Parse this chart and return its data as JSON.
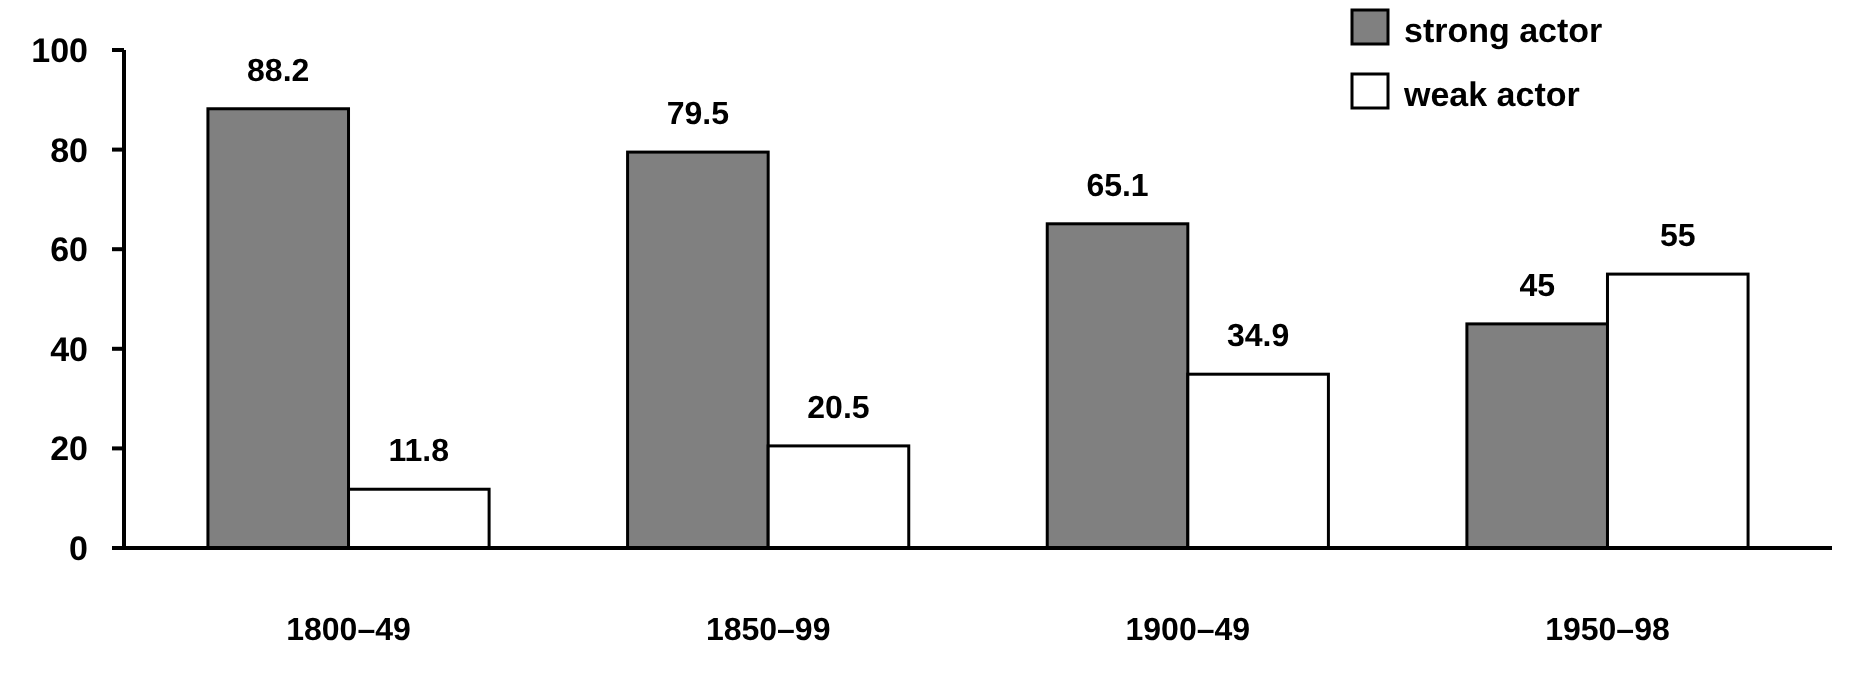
{
  "chart_data": {
    "type": "bar",
    "categories": [
      "1800–49",
      "1850–99",
      "1900–49",
      "1950–98"
    ],
    "series": [
      {
        "name": "strong actor",
        "color": "#808080",
        "values": [
          88.2,
          79.5,
          65.1,
          45
        ]
      },
      {
        "name": "weak actor",
        "color": "#ffffff",
        "values": [
          11.8,
          20.5,
          34.9,
          55
        ]
      }
    ],
    "ylim": [
      0,
      100
    ],
    "yticks": [
      0,
      20,
      40,
      60,
      80,
      100
    ],
    "grid": false,
    "legend": "top right",
    "data_labels": true
  }
}
